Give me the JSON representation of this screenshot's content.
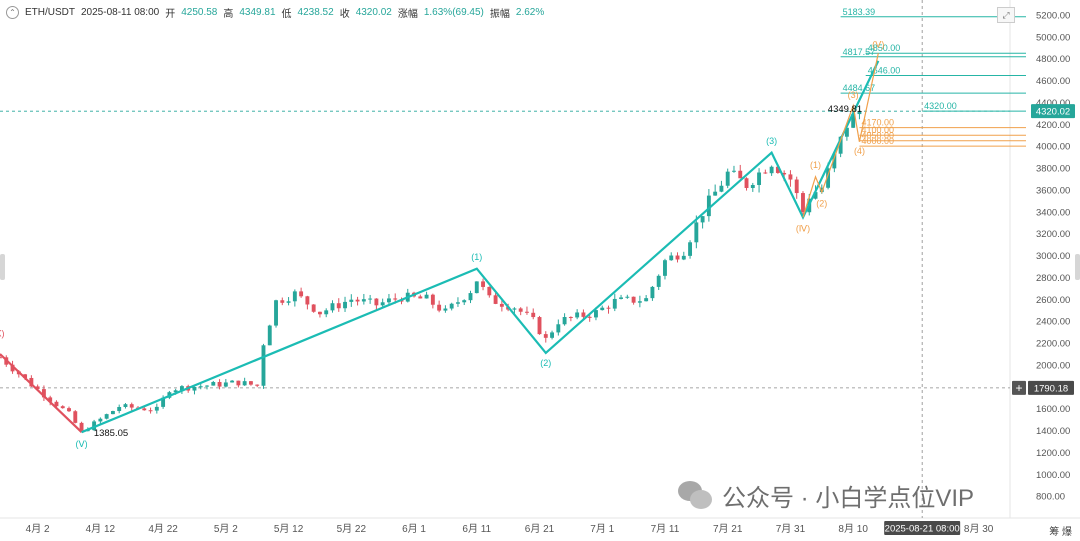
{
  "info": {
    "symbol": "ETH/USDT",
    "datetime": "2025-08-11 08:00",
    "open_label": "开",
    "open": "4250.58",
    "high_label": "高",
    "high": "4349.81",
    "low_label": "低",
    "low": "4238.52",
    "close_label": "收",
    "close": "4320.02",
    "change_label": "涨幅",
    "change": "1.63%(69.45)",
    "amp_label": "振幅",
    "amp": "2.62%"
  },
  "watermark": "公众号 · 小白学点位VIP",
  "footer_icons": "筹  爆",
  "colors": {
    "up": "#26a69a",
    "down": "#e0515e",
    "wave": "#1bbcb4",
    "fib": "#f0a04b",
    "level": "#26b5a6"
  },
  "chart_data": {
    "type": "candlestick",
    "ylim": [
      600,
      5300
    ],
    "yticks": [
      800,
      1000,
      1200,
      1400,
      1600,
      1800,
      2000,
      2200,
      2400,
      2600,
      2800,
      3000,
      3200,
      3400,
      3600,
      3800,
      4000,
      4200,
      4400,
      4600,
      4800,
      5000,
      5200
    ],
    "x_start": "2025-03-27",
    "x_end": "2025-09-04",
    "xticks": [
      {
        "date": "2025-04-02",
        "label": "4月 2"
      },
      {
        "date": "2025-04-12",
        "label": "4月 12"
      },
      {
        "date": "2025-04-22",
        "label": "4月 22"
      },
      {
        "date": "2025-05-02",
        "label": "5月 2"
      },
      {
        "date": "2025-05-12",
        "label": "5月 12"
      },
      {
        "date": "2025-05-22",
        "label": "5月 22"
      },
      {
        "date": "2025-06-01",
        "label": "6月 1"
      },
      {
        "date": "2025-06-11",
        "label": "6月 11"
      },
      {
        "date": "2025-06-21",
        "label": "6月 21"
      },
      {
        "date": "2025-07-01",
        "label": "7月 1"
      },
      {
        "date": "2025-07-11",
        "label": "7月 11"
      },
      {
        "date": "2025-07-21",
        "label": "7月 21"
      },
      {
        "date": "2025-07-31",
        "label": "7月 31"
      },
      {
        "date": "2025-08-10",
        "label": "8月 10"
      },
      {
        "date": "2025-08-30",
        "label": "8月 30"
      }
    ],
    "crosshair": {
      "date": "2025-08-21",
      "price": 1790.18,
      "date_label": "2025-08-21 08:00",
      "price_label": "1790.18"
    },
    "last_price": {
      "value": 4320.02,
      "label": "4320.02"
    },
    "anchors": [
      {
        "date": "2025-03-27",
        "price": 2070
      },
      {
        "date": "2025-04-01",
        "price": 1820
      },
      {
        "date": "2025-04-07",
        "price": 1550
      },
      {
        "date": "2025-04-09",
        "price": 1385
      },
      {
        "date": "2025-04-15",
        "price": 1620
      },
      {
        "date": "2025-04-21",
        "price": 1590
      },
      {
        "date": "2025-04-23",
        "price": 1780
      },
      {
        "date": "2025-05-04",
        "price": 1840
      },
      {
        "date": "2025-05-07",
        "price": 1810
      },
      {
        "date": "2025-05-08",
        "price": 2200
      },
      {
        "date": "2025-05-10",
        "price": 2580
      },
      {
        "date": "2025-05-13",
        "price": 2650
      },
      {
        "date": "2025-05-17",
        "price": 2480
      },
      {
        "date": "2025-05-22",
        "price": 2600
      },
      {
        "date": "2025-05-26",
        "price": 2550
      },
      {
        "date": "2025-05-30",
        "price": 2620
      },
      {
        "date": "2025-06-03",
        "price": 2600
      },
      {
        "date": "2025-06-06",
        "price": 2480
      },
      {
        "date": "2025-06-10",
        "price": 2680
      },
      {
        "date": "2025-06-11",
        "price": 2780
      },
      {
        "date": "2025-06-13",
        "price": 2600
      },
      {
        "date": "2025-06-17",
        "price": 2530
      },
      {
        "date": "2025-06-20",
        "price": 2400
      },
      {
        "date": "2025-06-22",
        "price": 2230
      },
      {
        "date": "2025-06-24",
        "price": 2400
      },
      {
        "date": "2025-06-30",
        "price": 2480
      },
      {
        "date": "2025-07-03",
        "price": 2580
      },
      {
        "date": "2025-07-08",
        "price": 2600
      },
      {
        "date": "2025-07-11",
        "price": 2950
      },
      {
        "date": "2025-07-14",
        "price": 3050
      },
      {
        "date": "2025-07-17",
        "price": 3400
      },
      {
        "date": "2025-07-21",
        "price": 3750
      },
      {
        "date": "2025-07-24",
        "price": 3650
      },
      {
        "date": "2025-07-28",
        "price": 3860
      },
      {
        "date": "2025-07-31",
        "price": 3700
      },
      {
        "date": "2025-08-02",
        "price": 3400
      },
      {
        "date": "2025-08-03",
        "price": 3550
      },
      {
        "date": "2025-08-05",
        "price": 3620
      },
      {
        "date": "2025-08-07",
        "price": 3900
      },
      {
        "date": "2025-08-09",
        "price": 4200
      },
      {
        "date": "2025-08-11",
        "price": 4320
      }
    ],
    "waves": [
      {
        "name": "red",
        "color": "#e0515e",
        "points": [
          {
            "date": "2025-03-27",
            "price": 2100
          },
          {
            "date": "2025-04-09",
            "price": 1385
          }
        ]
      },
      {
        "name": "teal",
        "color": "#1bbcb4",
        "points": [
          {
            "date": "2025-04-09",
            "price": 1385
          },
          {
            "date": "2025-06-11",
            "price": 2880
          },
          {
            "date": "2025-06-22",
            "price": 2110
          },
          {
            "date": "2025-07-28",
            "price": 3940
          },
          {
            "date": "2025-08-02",
            "price": 3350
          },
          {
            "date": "2025-08-14",
            "price": 4780
          }
        ]
      },
      {
        "name": "orange",
        "color": "#f0a04b",
        "points": [
          {
            "date": "2025-08-02",
            "price": 3350
          },
          {
            "date": "2025-08-04",
            "price": 3720
          },
          {
            "date": "2025-08-05",
            "price": 3580
          },
          {
            "date": "2025-08-10",
            "price": 4370
          },
          {
            "date": "2025-08-11",
            "price": 4040
          },
          {
            "date": "2025-08-14",
            "price": 4850
          }
        ]
      }
    ],
    "wave_labels": [
      {
        "text": "X)",
        "date": "2025-03-27",
        "price": 2260,
        "color": "#e0515e"
      },
      {
        "text": "(Ⅴ)",
        "date": "2025-04-09",
        "price": 1250,
        "color": "#1bbcb4"
      },
      {
        "text": "(1)",
        "date": "2025-06-11",
        "price": 2960,
        "color": "#1bbcb4"
      },
      {
        "text": "(2)",
        "date": "2025-06-22",
        "price": 1990,
        "color": "#1bbcb4"
      },
      {
        "text": "(3)",
        "date": "2025-07-28",
        "price": 4020,
        "color": "#1bbcb4"
      },
      {
        "text": "(1)",
        "date": "2025-08-04",
        "price": 3800,
        "color": "#f0a04b"
      },
      {
        "text": "(2)",
        "date": "2025-08-05",
        "price": 3450,
        "color": "#f0a04b"
      },
      {
        "text": "(Ⅳ)",
        "date": "2025-08-02",
        "price": 3220,
        "color": "#f0a04b"
      },
      {
        "text": "(3)",
        "date": "2025-08-10",
        "price": 4440,
        "color": "#f0a04b"
      },
      {
        "text": "(4)",
        "date": "2025-08-11",
        "price": 3930,
        "color": "#f0a04b"
      },
      {
        "text": "(Ⅴ)",
        "date": "2025-08-14",
        "price": 4900,
        "color": "#f0a04b"
      }
    ],
    "levels": [
      {
        "value": 5183.39,
        "label": "5183.39",
        "color": "#26b5a6",
        "from": "2025-08-08"
      },
      {
        "value": 4817.57,
        "label": "4817.57",
        "color": "#26b5a6",
        "from": "2025-08-08"
      },
      {
        "value": 4850.0,
        "label": "4850.00",
        "color": "#26b5a6",
        "from": "2025-08-12"
      },
      {
        "value": 4646.0,
        "label": "4646.00",
        "color": "#26b5a6",
        "from": "2025-08-12"
      },
      {
        "value": 4484.67,
        "label": "4484.67",
        "color": "#26b5a6",
        "from": "2025-08-08"
      },
      {
        "value": 4320.0,
        "label": "4320.00",
        "color": "#26b5a6",
        "from": "2025-08-21"
      },
      {
        "value": 4170.0,
        "label": "4170.00",
        "color": "#f0a04b",
        "from": "2025-08-11"
      },
      {
        "value": 4100.0,
        "label": "4100.00",
        "color": "#f0a04b",
        "from": "2025-08-11"
      },
      {
        "value": 4050.0,
        "label": "4050.00",
        "color": "#f0a04b",
        "from": "2025-08-11"
      },
      {
        "value": 4000.0,
        "label": "4000.00",
        "color": "#f0a04b",
        "from": "2025-08-11"
      }
    ],
    "annotations": [
      {
        "text": "1385.05",
        "date": "2025-04-10",
        "price": 1385
      },
      {
        "text": "4349.81",
        "date": "2025-08-05",
        "price": 4349.81
      }
    ]
  }
}
